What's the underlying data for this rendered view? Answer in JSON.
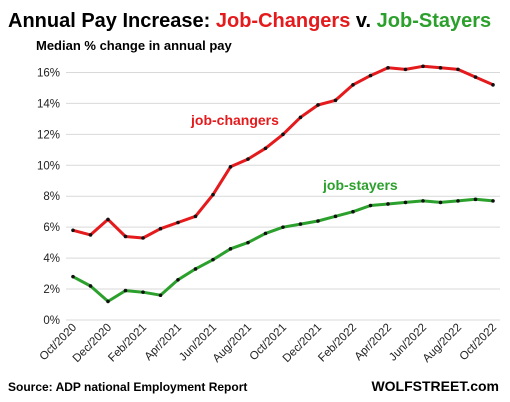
{
  "chart_data": {
    "type": "line",
    "title_parts": [
      {
        "text": "Annual Pay Increase: ",
        "color": "#000000"
      },
      {
        "text": "Job-Changers",
        "color": "#e41a1c"
      },
      {
        "text": " v. ",
        "color": "#000000"
      },
      {
        "text": "Job-Stayers",
        "color": "#2ca02c"
      }
    ],
    "subtitle": "Median % change in annual pay",
    "source": "Source: ADP national Employment Report",
    "brand": "WOLFSTREET.com",
    "ylim": [
      0,
      17
    ],
    "yticks": [
      0,
      2,
      4,
      6,
      8,
      10,
      12,
      14,
      16
    ],
    "ytick_labels": [
      "0%",
      "2%",
      "4%",
      "6%",
      "8%",
      "10%",
      "12%",
      "14%",
      "16%"
    ],
    "grid": true,
    "x": [
      "Oct/2020",
      "Nov/2020",
      "Dec/2020",
      "Jan/2021",
      "Feb/2021",
      "Mar/2021",
      "Apr/2021",
      "May/2021",
      "Jun/2021",
      "Jul/2021",
      "Aug/2021",
      "Sep/2021",
      "Oct/2021",
      "Nov/2021",
      "Dec/2021",
      "Jan/2022",
      "Feb/2022",
      "Mar/2022",
      "Apr/2022",
      "May/2022",
      "Jun/2022",
      "Jul/2022",
      "Aug/2022",
      "Sep/2022",
      "Oct/2022"
    ],
    "xtick_labels": [
      "Oct/2020",
      "Dec/2020",
      "Feb/2021",
      "Apr/2021",
      "Jun/2021",
      "Aug/2021",
      "Oct/2021",
      "Dec/2021",
      "Feb/2022",
      "Apr/2022",
      "Jun/2022",
      "Aug/2022",
      "Oct/2022"
    ],
    "series": [
      {
        "name": "job-changers",
        "color": "#e41a1c",
        "values": [
          5.8,
          5.5,
          6.5,
          5.4,
          5.3,
          5.9,
          6.3,
          6.7,
          8.1,
          9.9,
          10.4,
          11.1,
          12.0,
          13.1,
          13.9,
          14.2,
          15.2,
          15.8,
          16.3,
          16.2,
          16.4,
          16.3,
          16.2,
          15.7,
          15.2
        ]
      },
      {
        "name": "job-stayers",
        "color": "#2ca02c",
        "values": [
          2.8,
          2.2,
          1.2,
          1.9,
          1.8,
          1.6,
          2.6,
          3.3,
          3.9,
          4.6,
          5.0,
          5.6,
          6.0,
          6.2,
          6.4,
          6.7,
          7.0,
          7.4,
          7.5,
          7.6,
          7.7,
          7.6,
          7.7,
          7.8,
          7.7
        ]
      }
    ]
  }
}
